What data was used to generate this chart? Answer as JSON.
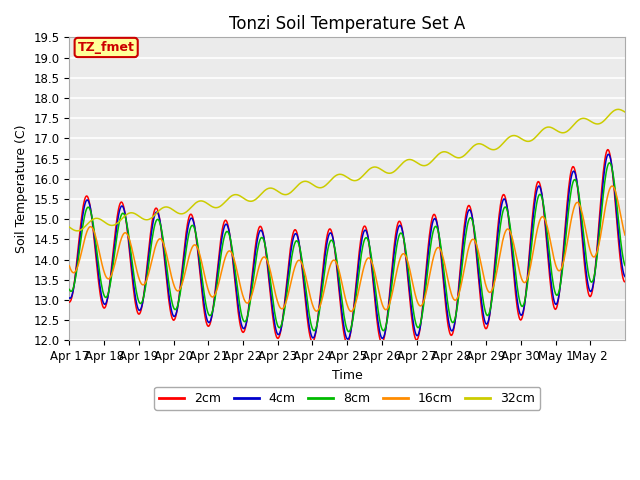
{
  "title": "Tonzi Soil Temperature Set A",
  "xlabel": "Time",
  "ylabel": "Soil Temperature (C)",
  "ylim": [
    12.0,
    19.5
  ],
  "yticks": [
    12.0,
    12.5,
    13.0,
    13.5,
    14.0,
    14.5,
    15.0,
    15.5,
    16.0,
    16.5,
    17.0,
    17.5,
    18.0,
    18.5,
    19.0,
    19.5
  ],
  "date_labels": [
    "Apr 17",
    "Apr 18",
    "Apr 19",
    "Apr 20",
    "Apr 21",
    "Apr 22",
    "Apr 23",
    "Apr 24",
    "Apr 25",
    "Apr 26",
    "Apr 27",
    "Apr 28",
    "Apr 29",
    "Apr 30",
    "May 1",
    "May 2"
  ],
  "line_colors": {
    "2cm": "#FF0000",
    "4cm": "#0000CC",
    "8cm": "#00BB00",
    "16cm": "#FF8C00",
    "32cm": "#CCCC00"
  },
  "annotation_text": "TZ_fmet",
  "annotation_bg": "#FFFF99",
  "annotation_border": "#CC0000",
  "plot_bg_color": "#EBEBEB",
  "grid_color": "#FFFFFF",
  "title_fontsize": 12,
  "axis_fontsize": 9,
  "tick_fontsize": 8.5
}
